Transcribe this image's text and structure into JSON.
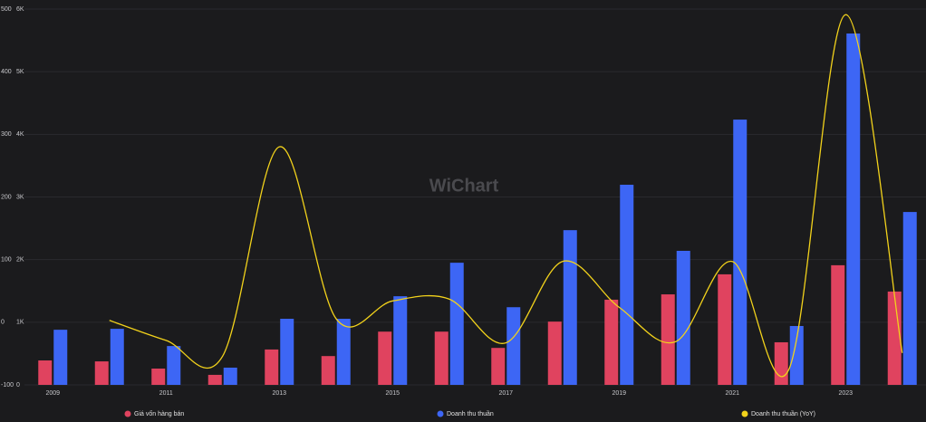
{
  "chart_data": {
    "type": "bar-line",
    "watermark": "WiChart",
    "categories": [
      "2009",
      null,
      "2011",
      null,
      "2013",
      null,
      "2015",
      null,
      "2017",
      null,
      "2019",
      null,
      "2021",
      null,
      "2023",
      null
    ],
    "series": [
      {
        "name": "Giá vốn hàng bán",
        "color": "#e0435f",
        "type": "bar",
        "values": [
          390,
          375,
          260,
          160,
          565,
          460,
          850,
          850,
          590,
          1010,
          1360,
          1445,
          1765,
          680,
          1910,
          1490
        ]
      },
      {
        "name": "Doanh thu thuần",
        "color": "#3d66f5",
        "type": "bar",
        "values": [
          880,
          895,
          620,
          275,
          1055,
          1055,
          1415,
          1950,
          1240,
          2470,
          3195,
          2140,
          4235,
          940,
          5610,
          2760
        ]
      },
      {
        "name": "Doanh thu thuần (YoY)",
        "color": "#f2d21b",
        "type": "line",
        "axis": "y2",
        "values": [
          null,
          3,
          -29,
          -54,
          280,
          6,
          34,
          37,
          -33,
          97,
          24,
          -31,
          97,
          -75,
          491,
          -49
        ]
      }
    ],
    "ylim": [
      0,
      6000
    ],
    "yticks": [
      0,
      {
        "value": 1000,
        "label": "1K"
      },
      {
        "value": 2000,
        "label": "2K"
      },
      {
        "value": 3000,
        "label": "3K"
      },
      {
        "value": 4000,
        "label": "4K"
      },
      {
        "value": 5000,
        "label": "5K"
      },
      {
        "value": 6000,
        "label": "6K"
      }
    ],
    "y2lim": [
      -100,
      500
    ],
    "y2ticks": [
      -100,
      0,
      100,
      200,
      300,
      400,
      500
    ],
    "grid": true
  }
}
